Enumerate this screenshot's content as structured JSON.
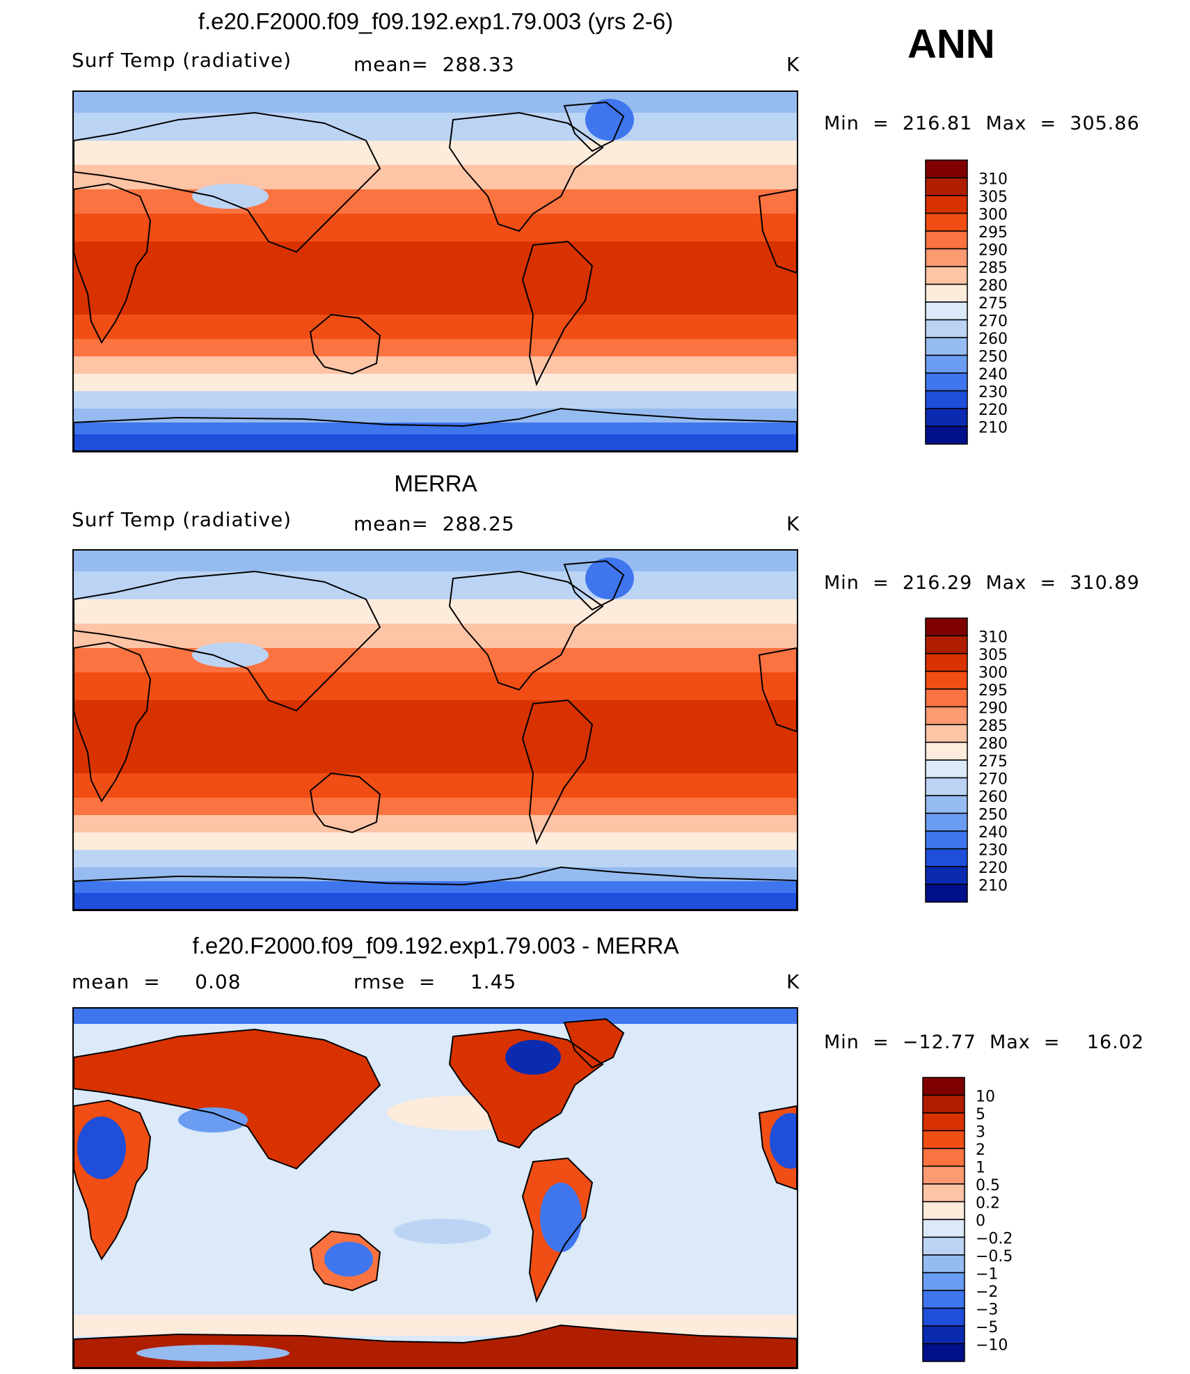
{
  "season": "ANN",
  "panels": [
    {
      "title": "f.e20.F2000.f09_f09.192.exp1.79.003 (yrs 2-6)",
      "left_label": "Surf Temp (radiative)",
      "center_label": "mean=  288.33",
      "units": "K",
      "minmax": "Min  =  216.81  Max  =  305.86",
      "colorbar": {
        "levels": [
          "310",
          "305",
          "300",
          "295",
          "290",
          "285",
          "280",
          "275",
          "270",
          "260",
          "250",
          "240",
          "230",
          "220",
          "210"
        ],
        "colors": [
          "#7f0000",
          "#b01e00",
          "#d83200",
          "#f04e14",
          "#fb7340",
          "#fc9a72",
          "#fdc4a6",
          "#fdebdc",
          "#dbe9f8",
          "#bcd4f4",
          "#96bbf0",
          "#6a9df2",
          "#3f76ee",
          "#1f4edb",
          "#0a2ab0",
          "#00108a"
        ]
      },
      "map_style": "absolute"
    },
    {
      "title": "MERRA",
      "left_label": "Surf Temp (radiative)",
      "center_label": "mean=  288.25",
      "units": "K",
      "minmax": "Min  =  216.29  Max  =  310.89",
      "colorbar": {
        "levels": [
          "310",
          "305",
          "300",
          "295",
          "290",
          "285",
          "280",
          "275",
          "270",
          "260",
          "250",
          "240",
          "230",
          "220",
          "210"
        ],
        "colors": [
          "#7f0000",
          "#b01e00",
          "#d83200",
          "#f04e14",
          "#fb7340",
          "#fc9a72",
          "#fdc4a6",
          "#fdebdc",
          "#dbe9f8",
          "#bcd4f4",
          "#96bbf0",
          "#6a9df2",
          "#3f76ee",
          "#1f4edb",
          "#0a2ab0",
          "#00108a"
        ]
      },
      "map_style": "absolute"
    },
    {
      "title": "f.e20.F2000.f09_f09.192.exp1.79.003 - MERRA",
      "left_label": "mean  =     0.08",
      "center_label": "rmse  =     1.45",
      "units": "K",
      "minmax": "Min  =  −12.77  Max  =    16.02",
      "colorbar": {
        "levels": [
          "10",
          "5",
          "3",
          "2",
          "1",
          "0.5",
          "0.2",
          "0",
          "−0.2",
          "−0.5",
          "−1",
          "−2",
          "−3",
          "−5",
          "−10"
        ],
        "colors": [
          "#7f0000",
          "#b01e00",
          "#d83200",
          "#f04e14",
          "#fb7340",
          "#fc9a72",
          "#fdc4a6",
          "#fdebdc",
          "#dbe9f8",
          "#bcd4f4",
          "#96bbf0",
          "#6a9df2",
          "#3f76ee",
          "#1f4edb",
          "#0a2ab0",
          "#00108a"
        ]
      },
      "map_style": "difference"
    }
  ],
  "chart_data": [
    {
      "type": "heatmap",
      "title": "f.e20.F2000.f09_f09.192.exp1.79.003 (yrs 2-6)",
      "variable": "Surf Temp (radiative)",
      "units": "K",
      "mean": 288.33,
      "min": 216.81,
      "max": 305.86,
      "contour_levels": [
        210,
        220,
        230,
        240,
        250,
        260,
        270,
        275,
        280,
        285,
        290,
        295,
        300,
        305,
        310
      ]
    },
    {
      "type": "heatmap",
      "title": "MERRA",
      "variable": "Surf Temp (radiative)",
      "units": "K",
      "mean": 288.25,
      "min": 216.29,
      "max": 310.89,
      "contour_levels": [
        210,
        220,
        230,
        240,
        250,
        260,
        270,
        275,
        280,
        285,
        290,
        295,
        300,
        305,
        310
      ]
    },
    {
      "type": "heatmap",
      "title": "f.e20.F2000.f09_f09.192.exp1.79.003 - MERRA",
      "units": "K",
      "mean": 0.08,
      "rmse": 1.45,
      "min": -12.77,
      "max": 16.02,
      "contour_levels": [
        -10,
        -5,
        -3,
        -2,
        -1,
        -0.5,
        -0.2,
        0,
        0.2,
        0.5,
        1,
        2,
        3,
        5,
        10
      ]
    }
  ]
}
